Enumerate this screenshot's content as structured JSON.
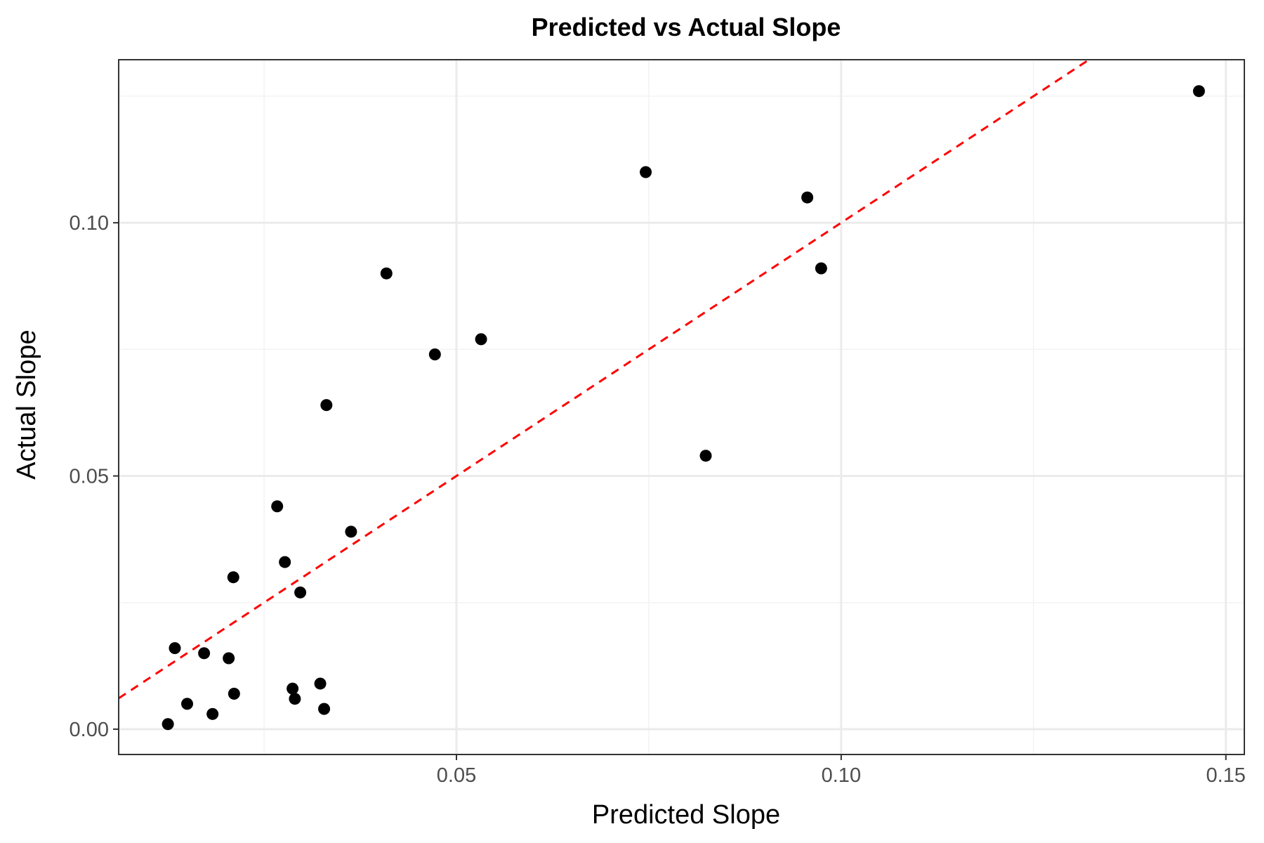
{
  "chart_data": {
    "type": "scatter",
    "title": "Predicted vs Actual Slope",
    "xlabel": "Predicted Slope",
    "ylabel": "Actual Slope",
    "xlim": [
      0.0061,
      0.1524
    ],
    "ylim": [
      -0.005,
      0.1322
    ],
    "x_ticks": [
      {
        "value": 0.05,
        "label": "0.05"
      },
      {
        "value": 0.1,
        "label": "0.10"
      },
      {
        "value": 0.15,
        "label": "0.15"
      }
    ],
    "y_ticks": [
      {
        "value": 0.0,
        "label": "0.00"
      },
      {
        "value": 0.05,
        "label": "0.05"
      },
      {
        "value": 0.1,
        "label": "0.10"
      }
    ],
    "x_minor": [
      0.025,
      0.075,
      0.125
    ],
    "y_minor": [
      0.025,
      0.075,
      0.125
    ],
    "grid": true,
    "reference_line": {
      "slope": 1,
      "intercept": 0,
      "color": "#ff0000",
      "style": "dashed"
    },
    "point_color": "#000000",
    "points": [
      {
        "x": 0.0125,
        "y": 0.001
      },
      {
        "x": 0.0134,
        "y": 0.016
      },
      {
        "x": 0.015,
        "y": 0.005
      },
      {
        "x": 0.0172,
        "y": 0.015
      },
      {
        "x": 0.0183,
        "y": 0.003
      },
      {
        "x": 0.0204,
        "y": 0.014
      },
      {
        "x": 0.021,
        "y": 0.03
      },
      {
        "x": 0.0211,
        "y": 0.007
      },
      {
        "x": 0.0267,
        "y": 0.044
      },
      {
        "x": 0.0277,
        "y": 0.033
      },
      {
        "x": 0.0287,
        "y": 0.008
      },
      {
        "x": 0.029,
        "y": 0.006
      },
      {
        "x": 0.0297,
        "y": 0.027
      },
      {
        "x": 0.0323,
        "y": 0.009
      },
      {
        "x": 0.0328,
        "y": 0.004
      },
      {
        "x": 0.0331,
        "y": 0.064
      },
      {
        "x": 0.0363,
        "y": 0.039
      },
      {
        "x": 0.0409,
        "y": 0.09
      },
      {
        "x": 0.0472,
        "y": 0.074
      },
      {
        "x": 0.0532,
        "y": 0.077
      },
      {
        "x": 0.0746,
        "y": 0.11
      },
      {
        "x": 0.0824,
        "y": 0.054
      },
      {
        "x": 0.0956,
        "y": 0.105
      },
      {
        "x": 0.0974,
        "y": 0.091
      },
      {
        "x": 0.1465,
        "y": 0.126
      }
    ]
  }
}
